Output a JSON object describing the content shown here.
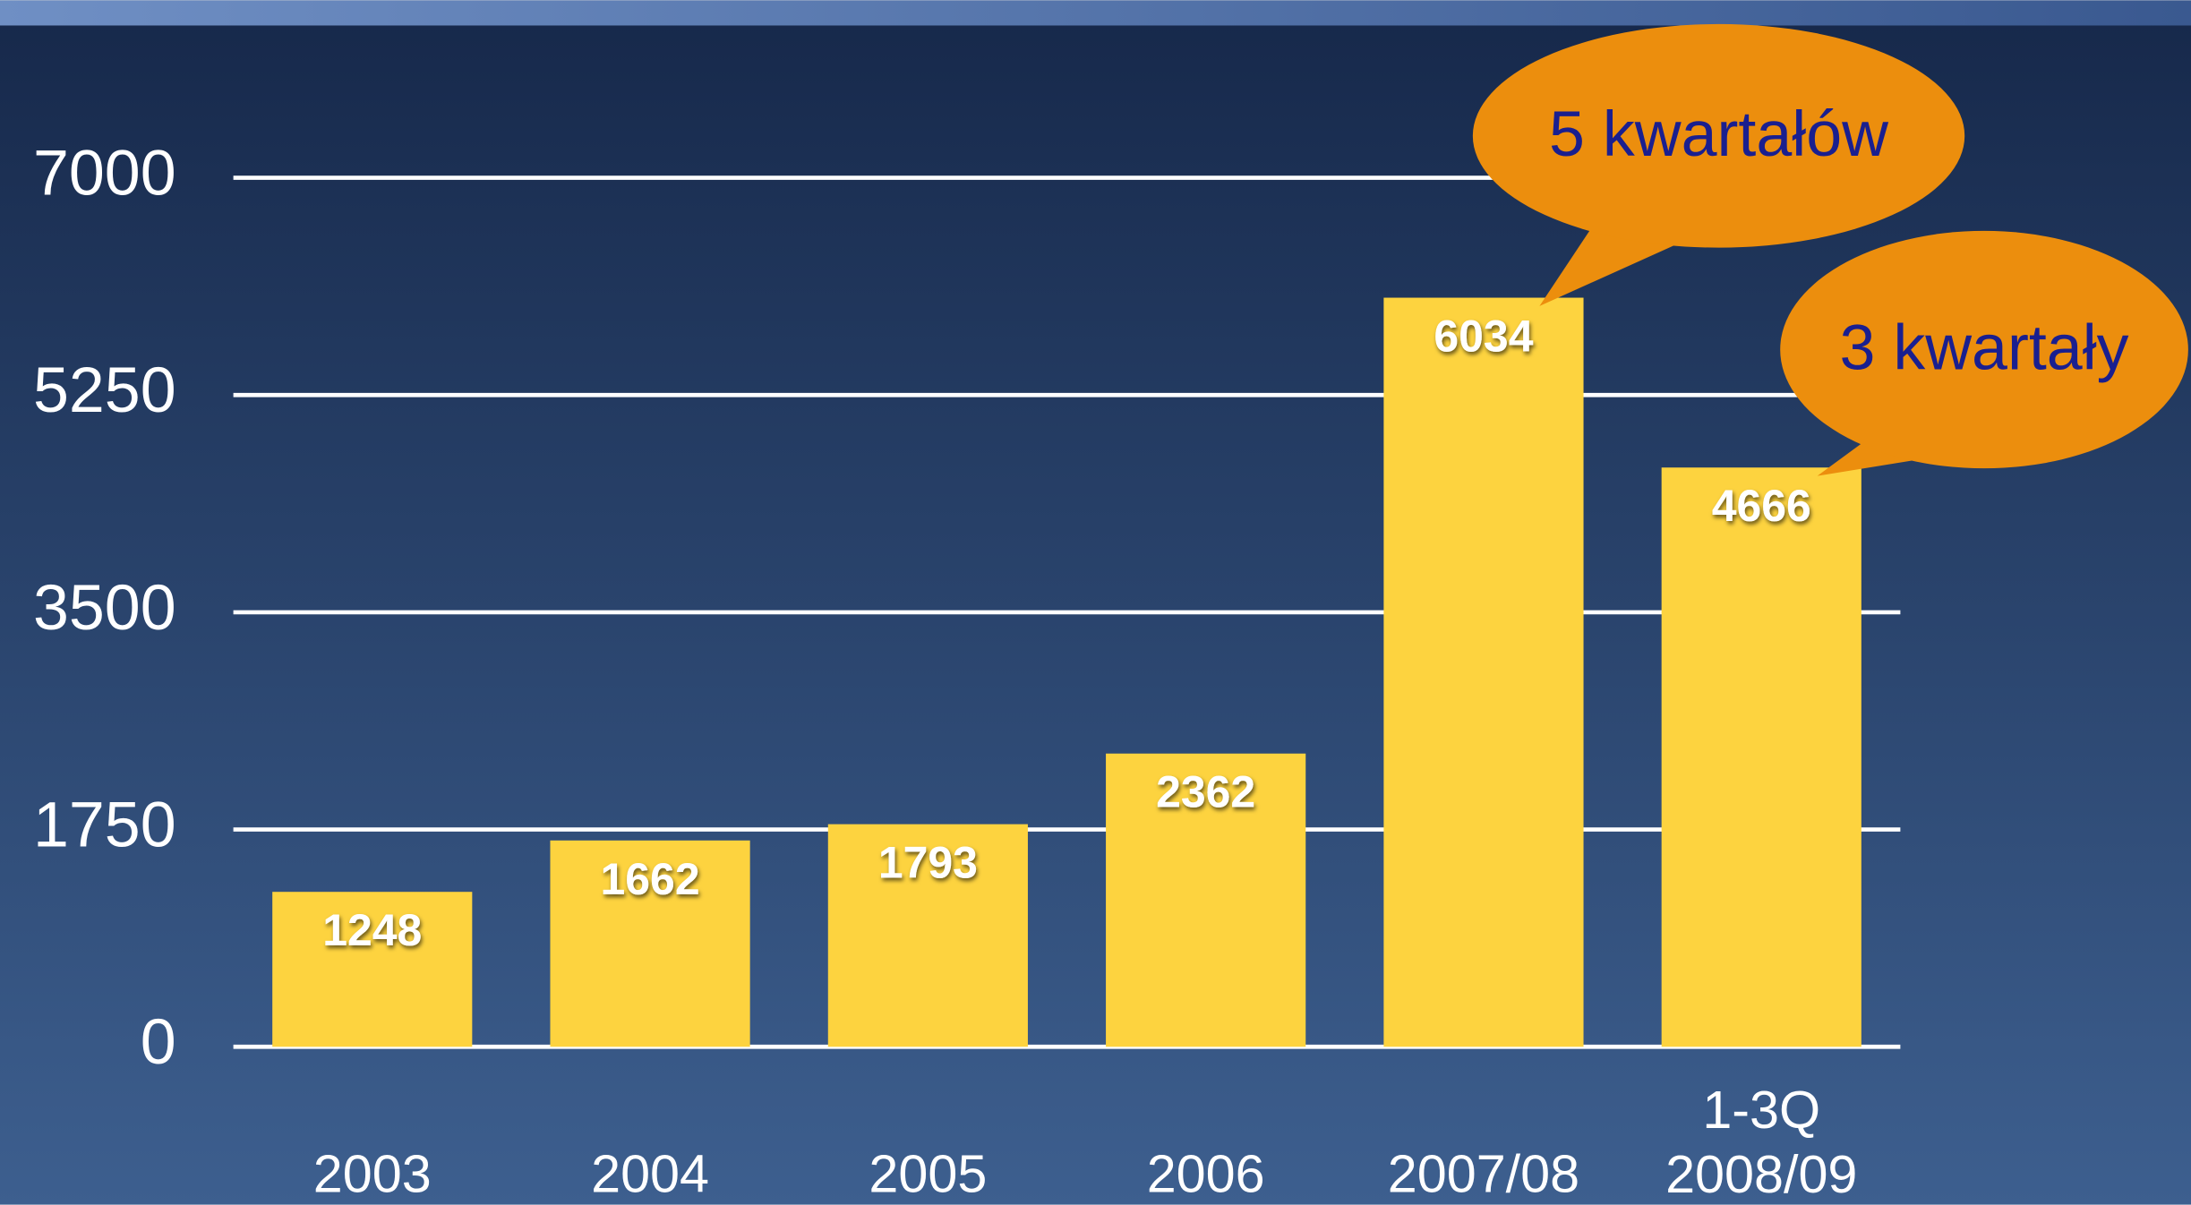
{
  "chart_data": {
    "type": "bar",
    "categories": [
      "2003",
      "2004",
      "2005",
      "2006",
      "2007/08",
      "1-3Q 2008/09"
    ],
    "values": [
      1248,
      1662,
      1793,
      2362,
      6034,
      4666
    ],
    "color": "#fdd33f",
    "ylim": [
      0,
      7000
    ],
    "yticks": [
      0,
      1750,
      3500,
      5250,
      7000
    ],
    "grid": true,
    "annotations": [
      {
        "text": "5 kwartałów"
      },
      {
        "text": "3 kwartały"
      }
    ]
  }
}
